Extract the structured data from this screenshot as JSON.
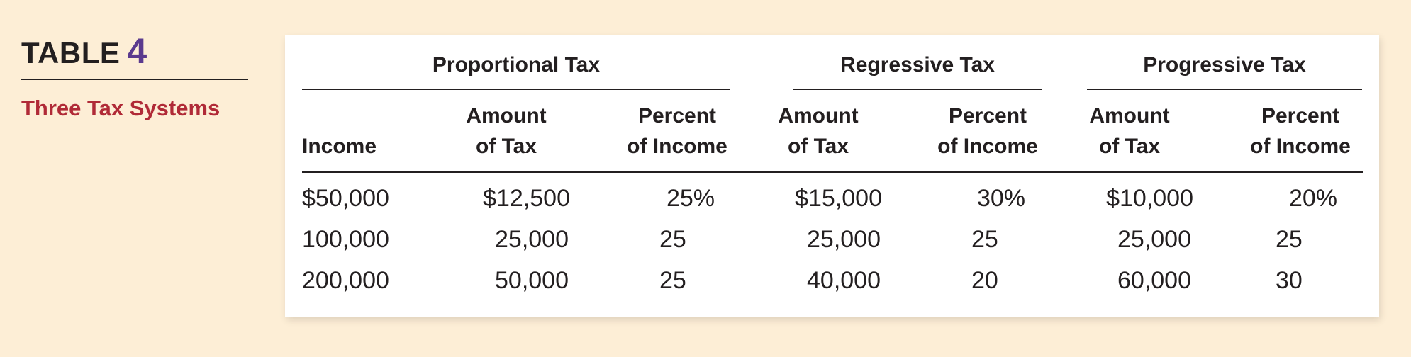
{
  "caption": {
    "table_label": "TABLE",
    "table_number": "4",
    "subtitle": "Three Tax Systems"
  },
  "table": {
    "groups": [
      "Proportional Tax",
      "Regressive Tax",
      "Progressive Tax"
    ],
    "income_header": "Income",
    "amount_header": [
      "Amount",
      "of Tax"
    ],
    "percent_header": [
      "Percent",
      "of Income"
    ],
    "rows": [
      {
        "income": "$50,000",
        "prop_amount": "$12,500",
        "prop_percent": "25%",
        "reg_amount": "$15,000",
        "reg_percent": "30%",
        "prog_amount": "$10,000",
        "prog_percent": "20%"
      },
      {
        "income": "100,000",
        "prop_amount": "25,000",
        "prop_percent": "25",
        "reg_amount": "25,000",
        "reg_percent": "25",
        "prog_amount": "25,000",
        "prog_percent": "25"
      },
      {
        "income": "200,000",
        "prop_amount": "50,000",
        "prop_percent": "25",
        "reg_amount": "40,000",
        "reg_percent": "20",
        "prog_amount": "60,000",
        "prog_percent": "30"
      }
    ]
  },
  "colors": {
    "background": "#fdeed6",
    "card": "#ffffff",
    "table_number": "#5b3a8e",
    "subtitle": "#b02a37",
    "text": "#231f20"
  }
}
